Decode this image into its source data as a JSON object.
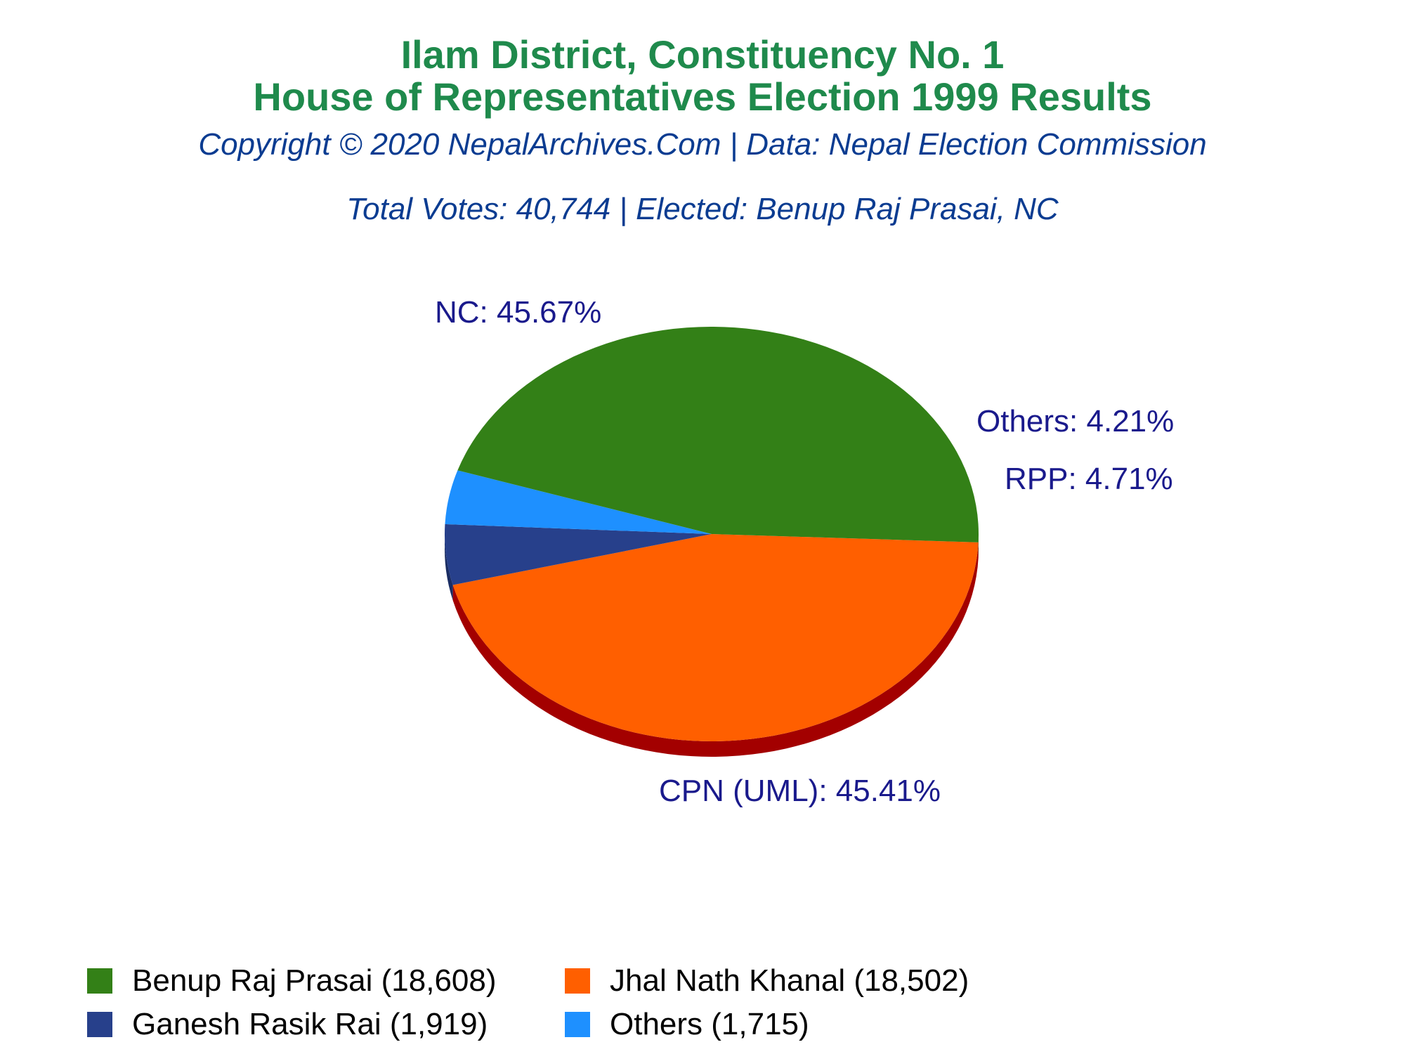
{
  "chart_data": {
    "type": "pie",
    "title": "Ilam District, Constituency No. 1",
    "subtitle": "House of Representatives Election 1999 Results",
    "credit": "Copyright © 2020 NepalArchives.Com | Data: Nepal Election Commission",
    "summary": "Total Votes: 40,744 | Elected: Benup Raj Prasai, NC",
    "slices": [
      {
        "label": "CPN (UML): 45.41%",
        "value": 45.41,
        "color": "#ff5f00",
        "side_color": "#a30000",
        "legend": "Jhal Nath Khanal (18,502)"
      },
      {
        "label": "RPP: 4.71%",
        "value": 4.71,
        "color": "#27408b",
        "side_color": "#1a2d63",
        "legend": "Ganesh Rasik Rai (1,919)"
      },
      {
        "label": "Others: 4.21%",
        "value": 4.21,
        "color": "#1e90ff",
        "side_color": "#1565b8",
        "legend": "Others (1,715)"
      },
      {
        "label": "NC: 45.67%",
        "value": 45.67,
        "color": "#338017",
        "side_color": "#1a4d0b",
        "legend": "Benup Raj Prasai (18,608)"
      }
    ],
    "legend_order": [
      3,
      0,
      1,
      2
    ],
    "legend_position": "bottom-left"
  }
}
